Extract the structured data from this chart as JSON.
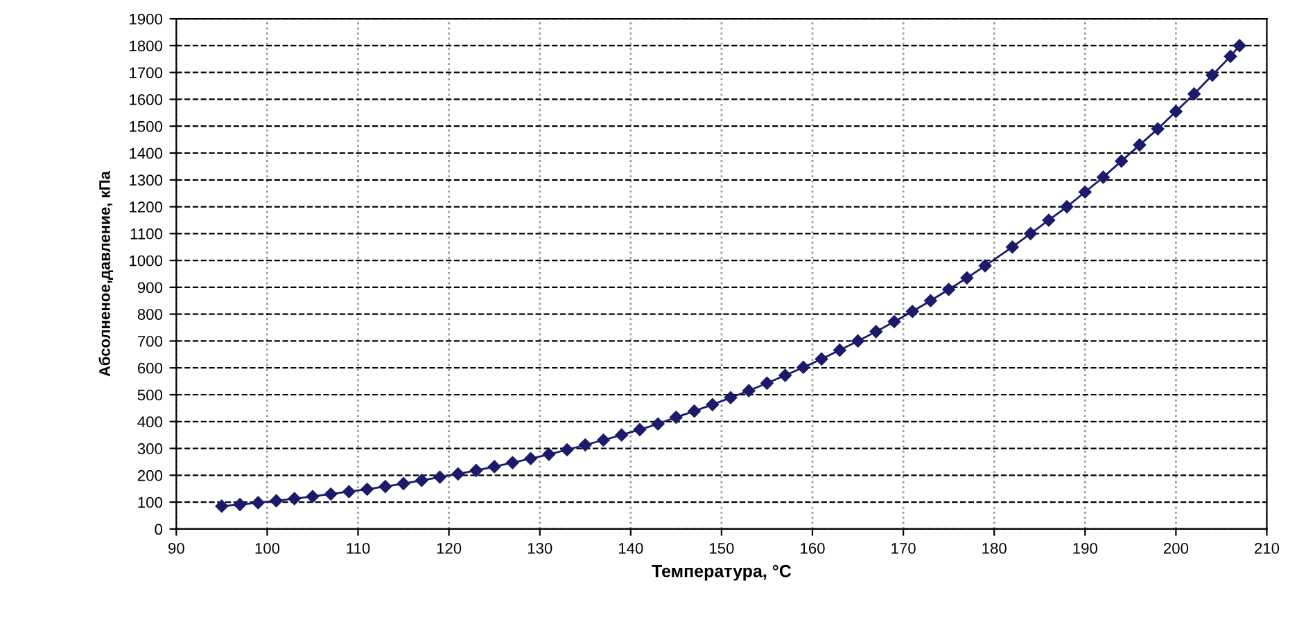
{
  "chart_data": {
    "type": "line",
    "xlabel": "Температура, °C",
    "ylabel": "Абсолненое,давление, кПа",
    "x": [
      95,
      97,
      99,
      101,
      103,
      105,
      107,
      109,
      111,
      113,
      115,
      117,
      119,
      121,
      123,
      125,
      127,
      129,
      131,
      133,
      135,
      137,
      139,
      141,
      143,
      145,
      147,
      149,
      151,
      153,
      155,
      157,
      159,
      161,
      163,
      165,
      167,
      169,
      171,
      173,
      175,
      177,
      179,
      182,
      184,
      186,
      188,
      190,
      192,
      194,
      196,
      198,
      200,
      202,
      204,
      206,
      207
    ],
    "series": [
      {
        "color": "#1c1a6b",
        "values": [
          85,
          91,
          98,
          105,
          113,
          121,
          130,
          139,
          148,
          158,
          169,
          181,
          193,
          205,
          218,
          232,
          247,
          262,
          278,
          295,
          313,
          331,
          350,
          370,
          391,
          416,
          439,
          463,
          489,
          515,
          543,
          572,
          602,
          633,
          666,
          700,
          735,
          772,
          810,
          850,
          892,
          935,
          980,
          1050,
          1100,
          1150,
          1200,
          1255,
          1310,
          1370,
          1430,
          1490,
          1555,
          1620,
          1690,
          1760,
          1800
        ]
      }
    ],
    "xlim": [
      90,
      210
    ],
    "xticks": [
      90,
      100,
      110,
      120,
      130,
      140,
      150,
      160,
      170,
      180,
      190,
      200,
      210
    ],
    "ylim": [
      0,
      1900
    ],
    "yticks": [
      0,
      100,
      200,
      300,
      400,
      500,
      600,
      700,
      800,
      900,
      1000,
      1100,
      1200,
      1300,
      1400,
      1500,
      1600,
      1700,
      1800,
      1900
    ],
    "grid": true,
    "marker": "diamond",
    "line_style": "solid"
  }
}
